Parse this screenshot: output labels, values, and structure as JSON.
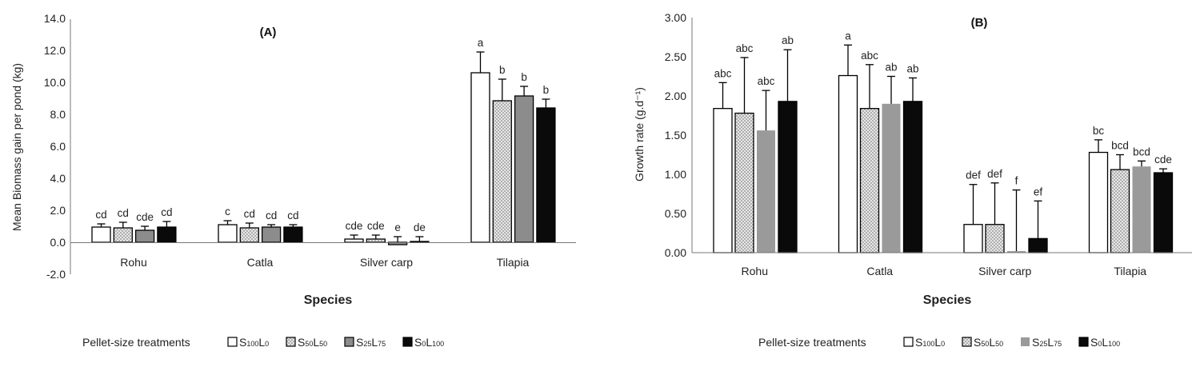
{
  "legend": {
    "title": "Pellet-size treatments",
    "treatments": [
      {
        "main": "S",
        "sub1": "100",
        "mid": "L",
        "sub2": "0",
        "style": "white"
      },
      {
        "main": "S",
        "sub1": "50",
        "mid": "L",
        "sub2": "50",
        "style": "dotted"
      },
      {
        "main": "S",
        "sub1": "25",
        "mid": "L",
        "sub2": "75",
        "style": "grey"
      },
      {
        "main": "S",
        "sub1": "0",
        "mid": "L",
        "sub2": "100",
        "style": "black"
      }
    ]
  },
  "colors": {
    "grey_A": "#8c8c8c",
    "grey_B": "#9a9a9a",
    "black": "#0a0a0a",
    "dotted_bg": "#e6e6e6",
    "dotted_fg": "#8a8a8a"
  },
  "chart_data": [
    {
      "type": "bar",
      "title": "(A)",
      "xlabel": "Species",
      "ylabel": "Mean Biomass gain per pond (kg)",
      "ylim": [
        -2.0,
        14.0
      ],
      "yticks": [
        "-2.0",
        "0.0",
        "2.0",
        "4.0",
        "6.0",
        "8.0",
        "10.0",
        "12.0",
        "14.0"
      ],
      "categories": [
        "Rohu",
        "Catla",
        "Silver carp",
        "Tilapia"
      ],
      "series": [
        {
          "values": [
            0.95,
            1.1,
            0.2,
            10.6
          ],
          "errors": [
            0.2,
            0.25,
            0.25,
            1.3
          ],
          "labels": [
            "cd",
            "c",
            "cde",
            "a"
          ]
        },
        {
          "values": [
            0.9,
            0.9,
            0.2,
            8.85
          ],
          "errors": [
            0.35,
            0.3,
            0.25,
            1.35
          ],
          "labels": [
            "cd",
            "cd",
            "cde",
            "b"
          ]
        },
        {
          "values": [
            0.75,
            0.95,
            -0.15,
            9.15
          ],
          "errors": [
            0.25,
            0.15,
            0.35,
            0.6
          ],
          "labels": [
            "cde",
            "cd",
            "e",
            "b"
          ]
        },
        {
          "values": [
            0.95,
            0.95,
            0.05,
            8.4
          ],
          "errors": [
            0.35,
            0.15,
            0.3,
            0.55
          ],
          "labels": [
            "cd",
            "cd",
            "de",
            "b"
          ]
        }
      ]
    },
    {
      "type": "bar",
      "title": "(B)",
      "xlabel": "Species",
      "ylabel": "Growth rate (g.d⁻¹)",
      "ylim": [
        0,
        3.0
      ],
      "yticks": [
        "0.00",
        "0.50",
        "1.00",
        "1.50",
        "2.00",
        "2.50",
        "3.00"
      ],
      "categories": [
        "Rohu",
        "Catla",
        "Silver carp",
        "Tilapia"
      ],
      "series": [
        {
          "values": [
            1.84,
            2.26,
            0.36,
            1.28
          ],
          "errors": [
            0.33,
            0.39,
            0.51,
            0.16
          ],
          "labels": [
            "abc",
            "a",
            "def",
            "bc"
          ]
        },
        {
          "values": [
            1.78,
            1.84,
            0.36,
            1.06
          ],
          "errors": [
            0.71,
            0.56,
            0.53,
            0.19
          ],
          "labels": [
            "abc",
            "abc",
            "def",
            "bcd"
          ]
        },
        {
          "values": [
            1.56,
            1.9,
            0.02,
            1.1
          ],
          "errors": [
            0.51,
            0.35,
            0.78,
            0.07
          ],
          "labels": [
            "abc",
            "ab",
            "f",
            "bcd"
          ]
        },
        {
          "values": [
            1.93,
            1.93,
            0.18,
            1.02
          ],
          "errors": [
            0.66,
            0.3,
            0.48,
            0.05
          ],
          "labels": [
            "ab",
            "ab",
            "ef",
            "cde"
          ]
        }
      ]
    }
  ]
}
